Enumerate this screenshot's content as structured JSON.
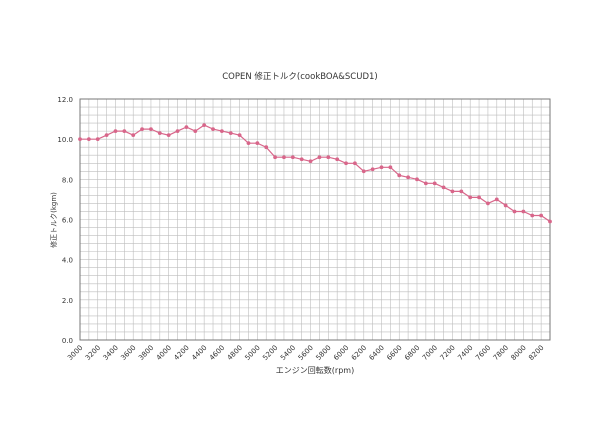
{
  "chart_data": {
    "type": "line",
    "title": "COPEN 修正トルク(cookBOA&SCUD1)",
    "xlabel": "エンジン回転数(rpm)",
    "ylabel": "修正トルク(kgm)",
    "xlim": [
      3000,
      8300
    ],
    "ylim": [
      0,
      12
    ],
    "grid": true,
    "x_tick_labels": [
      "3000",
      "3200",
      "3400",
      "3600",
      "3800",
      "4000",
      "4200",
      "4400",
      "4600",
      "4800",
      "5000",
      "5200",
      "5400",
      "5600",
      "5800",
      "6000",
      "6200",
      "6400",
      "6600",
      "6800",
      "7000",
      "7200",
      "7400",
      "7600",
      "7800",
      "8000",
      "8200"
    ],
    "y_tick_labels": [
      "0.0",
      "2.0",
      "4.0",
      "6.0",
      "8.0",
      "10.0",
      "12.0"
    ],
    "series": [
      {
        "name": "修正トルク",
        "color": "#d8668a",
        "x": [
          3000,
          3100,
          3200,
          3300,
          3400,
          3500,
          3600,
          3700,
          3800,
          3900,
          4000,
          4100,
          4200,
          4300,
          4400,
          4500,
          4600,
          4700,
          4800,
          4900,
          5000,
          5100,
          5200,
          5300,
          5400,
          5500,
          5600,
          5700,
          5800,
          5900,
          6000,
          6100,
          6200,
          6300,
          6400,
          6500,
          6600,
          6700,
          6800,
          6900,
          7000,
          7100,
          7200,
          7300,
          7400,
          7500,
          7600,
          7700,
          7800,
          7900,
          8000,
          8100,
          8200,
          8300
        ],
        "values": [
          10.0,
          10.0,
          10.0,
          10.2,
          10.4,
          10.4,
          10.2,
          10.5,
          10.5,
          10.3,
          10.2,
          10.4,
          10.6,
          10.4,
          10.7,
          10.5,
          10.4,
          10.3,
          10.2,
          9.8,
          9.8,
          9.6,
          9.1,
          9.1,
          9.1,
          9.0,
          8.9,
          9.1,
          9.1,
          9.0,
          8.8,
          8.8,
          8.4,
          8.5,
          8.6,
          8.6,
          8.2,
          8.1,
          8.0,
          7.8,
          7.8,
          7.6,
          7.4,
          7.4,
          7.1,
          7.1,
          6.8,
          7.0,
          6.7,
          6.4,
          6.4,
          6.2,
          6.2,
          5.9
        ]
      }
    ]
  }
}
